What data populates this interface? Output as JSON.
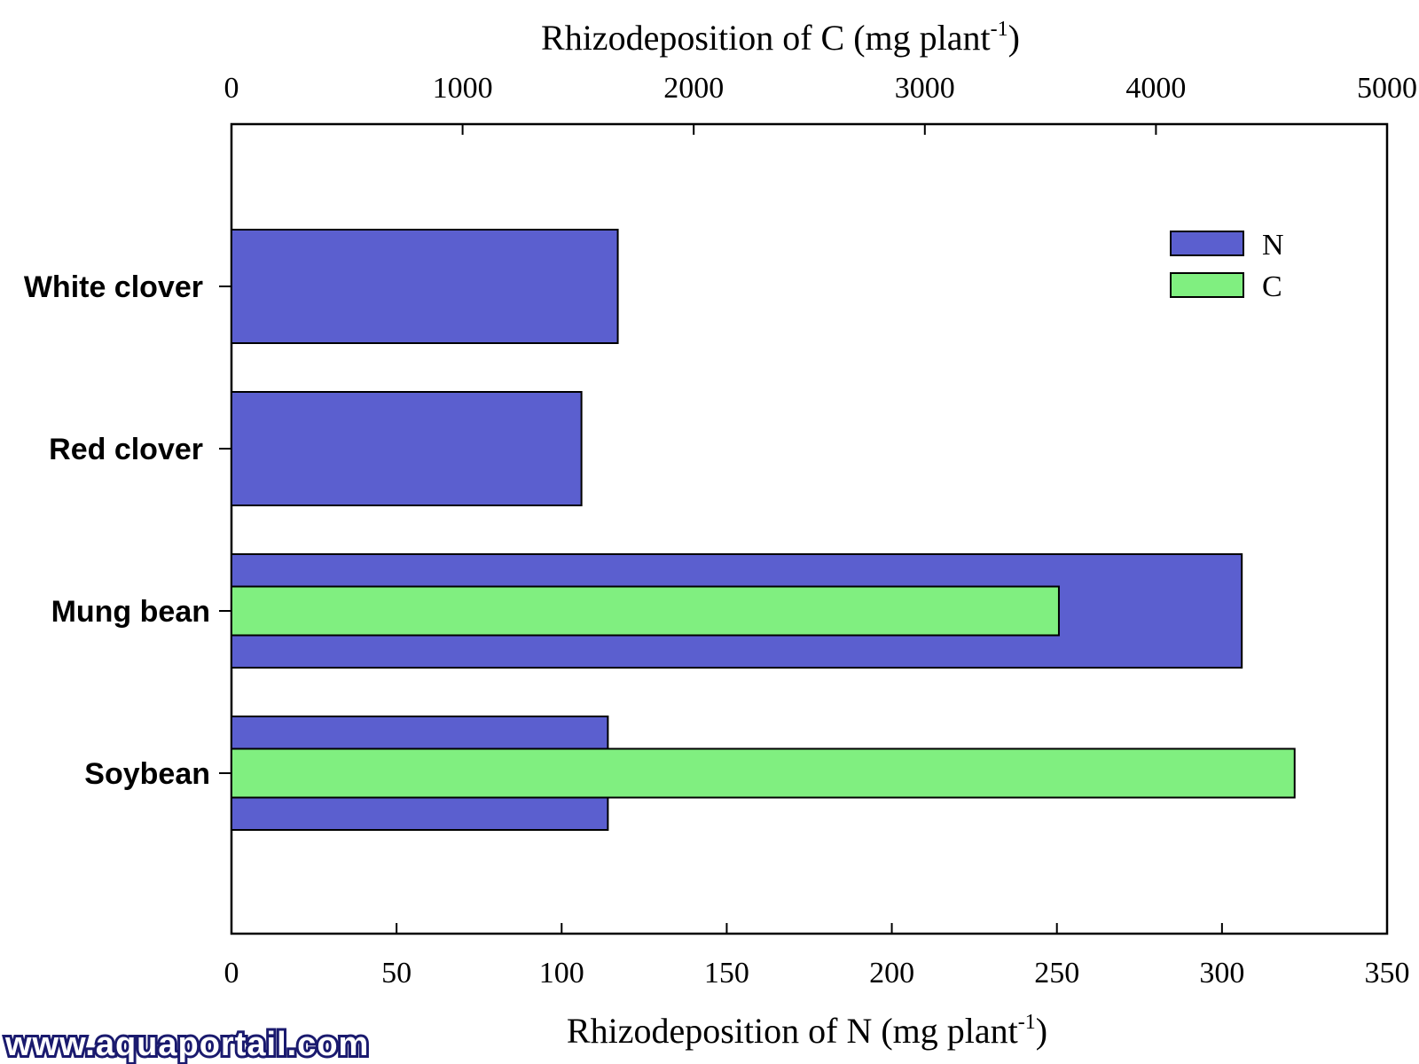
{
  "chart_data": {
    "type": "bar",
    "orientation": "horizontal",
    "categories": [
      "White clover",
      "Red clover",
      "Mung bean",
      "Soybean"
    ],
    "series": [
      {
        "name": "N",
        "axis": "bottom",
        "color": "#5b5fcf",
        "values": [
          117,
          106,
          306,
          114
        ]
      },
      {
        "name": "C",
        "axis": "top",
        "color": "#80ef80",
        "values": [
          null,
          null,
          3580,
          4600
        ]
      }
    ],
    "x_bottom": {
      "label_main": "Rhizodeposition of  N (mg plant",
      "label_sup": "-1",
      "label_end": ")",
      "range": [
        0,
        350
      ],
      "ticks": [
        "0",
        "50",
        "100",
        "150",
        "200",
        "250",
        "300",
        "350"
      ]
    },
    "x_top": {
      "label_main": "Rhizodeposition of C (mg plant",
      "label_sup": "-1",
      "label_end": ")",
      "range": [
        0,
        5000
      ],
      "ticks": [
        "0",
        "1000",
        "2000",
        "3000",
        "4000",
        "5000"
      ]
    },
    "legend": {
      "placement": "top-right",
      "items": [
        {
          "label": "N",
          "color": "#5b5fcf"
        },
        {
          "label": "C",
          "color": "#80ef80"
        }
      ]
    },
    "grid": false
  },
  "watermark": "www.aquaportail.com"
}
